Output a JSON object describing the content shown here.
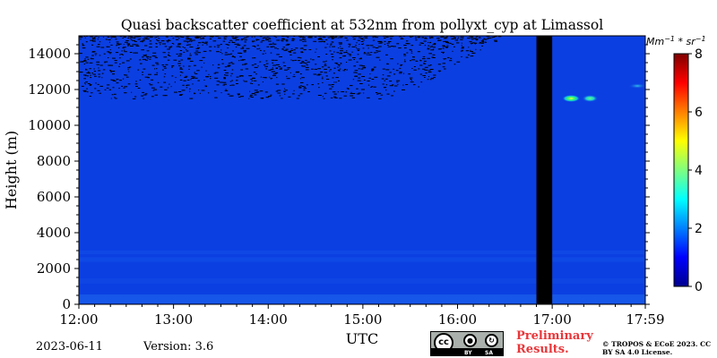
{
  "chart_data": {
    "type": "heatmap",
    "title": "Quasi backscatter coefficient at 532nm from pollyxt_cyp at Limassol",
    "xlabel": "UTC",
    "ylabel": "Height (m)",
    "x_ticks": [
      "12:00",
      "13:00",
      "14:00",
      "15:00",
      "16:00",
      "17:00",
      "17:59"
    ],
    "x_range": [
      "12:00",
      "17:59"
    ],
    "y_ticks": [
      0,
      2000,
      4000,
      6000,
      8000,
      10000,
      12000,
      14000
    ],
    "y_range": [
      0,
      15000
    ],
    "colorbar": {
      "label": "Mm^-1 * sr^-1",
      "range": [
        0,
        8
      ],
      "ticks": [
        0,
        2,
        4,
        6,
        8
      ],
      "colormap": "jet"
    },
    "background_value": 0.5,
    "no_data_gap": {
      "start": "16:50",
      "end": "17:00"
    },
    "features": [
      {
        "description": "sparse noise above",
        "height_from": 11500,
        "height_to": 15000,
        "time_from": "12:00",
        "time_to": "16:30"
      },
      {
        "description": "aerosol layers",
        "height_from": 0,
        "height_to": 3000,
        "time_from": "12:00",
        "time_to": "17:59"
      },
      {
        "description": "cirrus cloud",
        "time": "17:12",
        "height": 11500,
        "value": 4.5
      },
      {
        "description": "cirrus cloud",
        "time": "17:24",
        "height": 11500,
        "value": 3.0
      },
      {
        "description": "cirrus cloud",
        "time": "17:54",
        "height": 12200,
        "value": 2.0
      }
    ]
  },
  "footer": {
    "date": "2023-06-11",
    "version": "Version: 3.6",
    "license_badge": {
      "cc": "cc",
      "by": "BY",
      "sa": "SA"
    },
    "preliminary": "Preliminary Results.",
    "copyright": "© TROPOS & ECoE 2023. CC BY SA 4.0 License."
  },
  "colors": {
    "background_field": "#0b3fe2",
    "no_data": "#000000",
    "preliminary_text": "#e8373a"
  }
}
